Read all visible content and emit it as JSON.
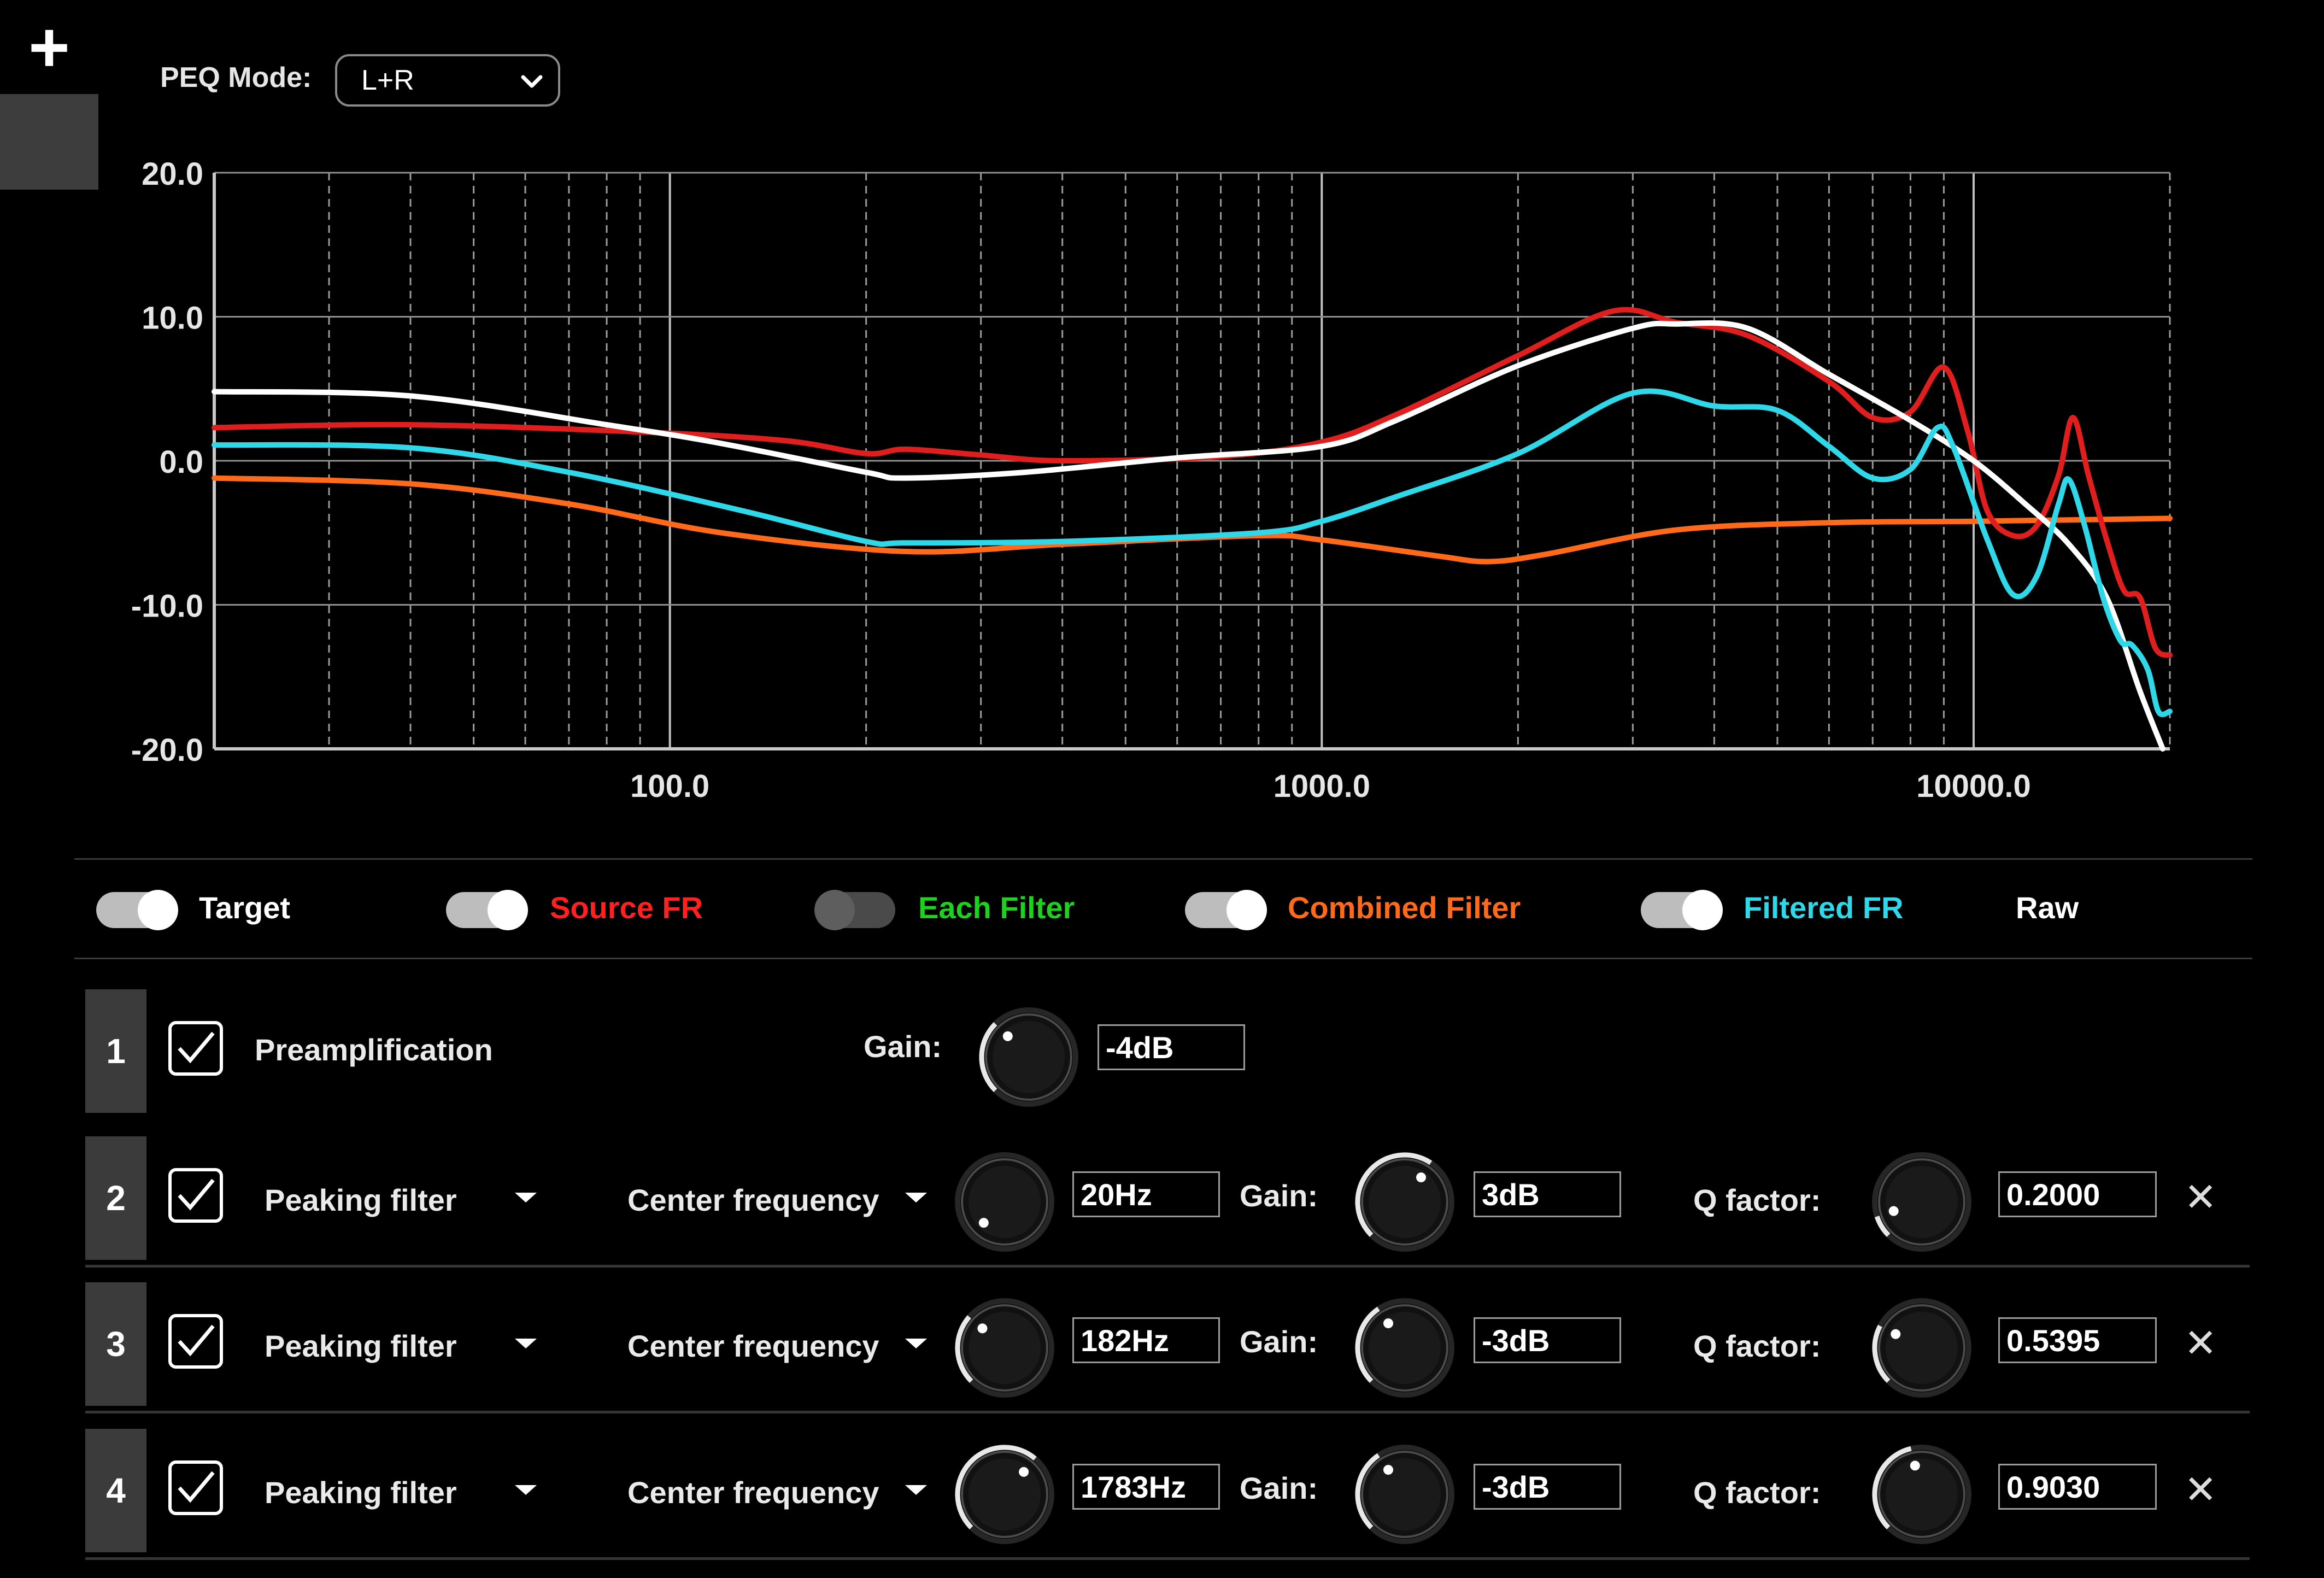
{
  "header": {
    "add_label": "+",
    "peq_mode_label": "PEQ Mode:",
    "peq_mode_value": "L+R"
  },
  "chart_data": {
    "type": "line",
    "x_scale": "log",
    "xlim": [
      20,
      20000
    ],
    "ylim": [
      -20,
      20
    ],
    "x_ticks": [
      {
        "v": 100,
        "label": "100.0"
      },
      {
        "v": 1000,
        "label": "1000.0"
      },
      {
        "v": 10000,
        "label": "10000.0"
      }
    ],
    "y_ticks": [
      {
        "v": 20,
        "label": "20.0"
      },
      {
        "v": 10,
        "label": "10.0"
      },
      {
        "v": 0,
        "label": "0.0"
      },
      {
        "v": -10,
        "label": "-10.0"
      },
      {
        "v": -20,
        "label": "-20.0"
      }
    ],
    "grid": true,
    "series": [
      {
        "key": "target",
        "color": "#ffffff",
        "points": [
          [
            20,
            4.8
          ],
          [
            40,
            4.5
          ],
          [
            80,
            2.5
          ],
          [
            120,
            1.2
          ],
          [
            200,
            -0.8
          ],
          [
            230,
            -1.2
          ],
          [
            350,
            -0.8
          ],
          [
            600,
            0.2
          ],
          [
            1000,
            1.0
          ],
          [
            1300,
            2.8
          ],
          [
            2000,
            6.6
          ],
          [
            3000,
            9.2
          ],
          [
            3500,
            9.5
          ],
          [
            4500,
            9.2
          ],
          [
            6000,
            6.0
          ],
          [
            8000,
            2.8
          ],
          [
            10000,
            0
          ],
          [
            12000,
            -3
          ],
          [
            14000,
            -5.8
          ],
          [
            16000,
            -9.5
          ],
          [
            18000,
            -16
          ],
          [
            19500,
            -20
          ]
        ]
      },
      {
        "key": "source",
        "color": "#e01e1e",
        "points": [
          [
            20,
            2.3
          ],
          [
            40,
            2.5
          ],
          [
            90,
            2.0
          ],
          [
            150,
            1.4
          ],
          [
            200,
            0.5
          ],
          [
            230,
            0.8
          ],
          [
            300,
            0.4
          ],
          [
            400,
            0
          ],
          [
            700,
            0.3
          ],
          [
            1000,
            1.3
          ],
          [
            1300,
            3.2
          ],
          [
            2000,
            7.3
          ],
          [
            2800,
            10.4
          ],
          [
            3500,
            9.6
          ],
          [
            4500,
            8.7
          ],
          [
            6000,
            5.5
          ],
          [
            7000,
            3.0
          ],
          [
            8000,
            3.4
          ],
          [
            9000,
            6.5
          ],
          [
            9800,
            2.0
          ],
          [
            10500,
            -3.5
          ],
          [
            11500,
            -5.2
          ],
          [
            12500,
            -4.5
          ],
          [
            13500,
            -1
          ],
          [
            14200,
            3.0
          ],
          [
            15000,
            -1.0
          ],
          [
            16000,
            -5.5
          ],
          [
            17000,
            -9.0
          ],
          [
            18000,
            -9.5
          ],
          [
            19000,
            -13.0
          ],
          [
            20000,
            -13.5
          ]
        ]
      },
      {
        "key": "combined",
        "color": "#ff6a1a",
        "points": [
          [
            20,
            -1.2
          ],
          [
            40,
            -1.6
          ],
          [
            70,
            -3.0
          ],
          [
            120,
            -5.0
          ],
          [
            230,
            -6.3
          ],
          [
            400,
            -5.8
          ],
          [
            800,
            -5.2
          ],
          [
            1000,
            -5.5
          ],
          [
            1500,
            -6.6
          ],
          [
            1800,
            -7.0
          ],
          [
            2200,
            -6.5
          ],
          [
            3500,
            -4.8
          ],
          [
            6000,
            -4.3
          ],
          [
            10000,
            -4.2
          ],
          [
            20000,
            -4.0
          ]
        ]
      },
      {
        "key": "filtered",
        "color": "#2fd8e8",
        "points": [
          [
            20,
            1.1
          ],
          [
            40,
            0.9
          ],
          [
            70,
            -0.8
          ],
          [
            130,
            -3.5
          ],
          [
            200,
            -5.6
          ],
          [
            230,
            -5.7
          ],
          [
            400,
            -5.6
          ],
          [
            800,
            -5.0
          ],
          [
            1000,
            -4.2
          ],
          [
            1300,
            -2.5
          ],
          [
            2000,
            0.5
          ],
          [
            3000,
            4.7
          ],
          [
            4000,
            3.8
          ],
          [
            5000,
            3.5
          ],
          [
            6000,
            1.0
          ],
          [
            7000,
            -1.2
          ],
          [
            8000,
            -0.6
          ],
          [
            8800,
            2.3
          ],
          [
            9300,
            1.0
          ],
          [
            10500,
            -5.5
          ],
          [
            11500,
            -9.3
          ],
          [
            12500,
            -8.0
          ],
          [
            13500,
            -3
          ],
          [
            14000,
            -1.3
          ],
          [
            14800,
            -4.5
          ],
          [
            15800,
            -9.5
          ],
          [
            16800,
            -12.5
          ],
          [
            17500,
            -12.8
          ],
          [
            18500,
            -14.5
          ],
          [
            19200,
            -17.4
          ],
          [
            20000,
            -17.4
          ]
        ]
      }
    ]
  },
  "legend": [
    {
      "key": "target",
      "label": "Target",
      "color": "#ffffff",
      "on": true
    },
    {
      "key": "source",
      "label": "Source FR",
      "color": "#ff2020",
      "on": true
    },
    {
      "key": "each",
      "label": "Each Filter",
      "color": "#1fd11f",
      "on": false
    },
    {
      "key": "combined",
      "label": "Combined Filter",
      "color": "#ff6a1a",
      "on": true
    },
    {
      "key": "filtered",
      "label": "Filtered FR",
      "color": "#2fd8e8",
      "on": true
    },
    {
      "key": "raw",
      "label": "Raw",
      "color": "#ffffff"
    }
  ],
  "preamp": {
    "index": "1",
    "label": "Preamplification",
    "gain_label": "Gain:",
    "gain_value": "-4dB"
  },
  "filters": [
    {
      "index": "2",
      "type": "Peaking filter",
      "param_label": "Center frequency",
      "freq": "20Hz",
      "gain_label": "Gain:",
      "gain": "3dB",
      "q_label": "Q factor:",
      "q": "0.2000"
    },
    {
      "index": "3",
      "type": "Peaking filter",
      "param_label": "Center frequency",
      "freq": "182Hz",
      "gain_label": "Gain:",
      "gain": "-3dB",
      "q_label": "Q factor:",
      "q": "0.5395"
    },
    {
      "index": "4",
      "type": "Peaking filter",
      "param_label": "Center frequency",
      "freq": "1783Hz",
      "gain_label": "Gain:",
      "gain": "-3dB",
      "q_label": "Q factor:",
      "q": "0.9030"
    }
  ],
  "close_label": "✕"
}
